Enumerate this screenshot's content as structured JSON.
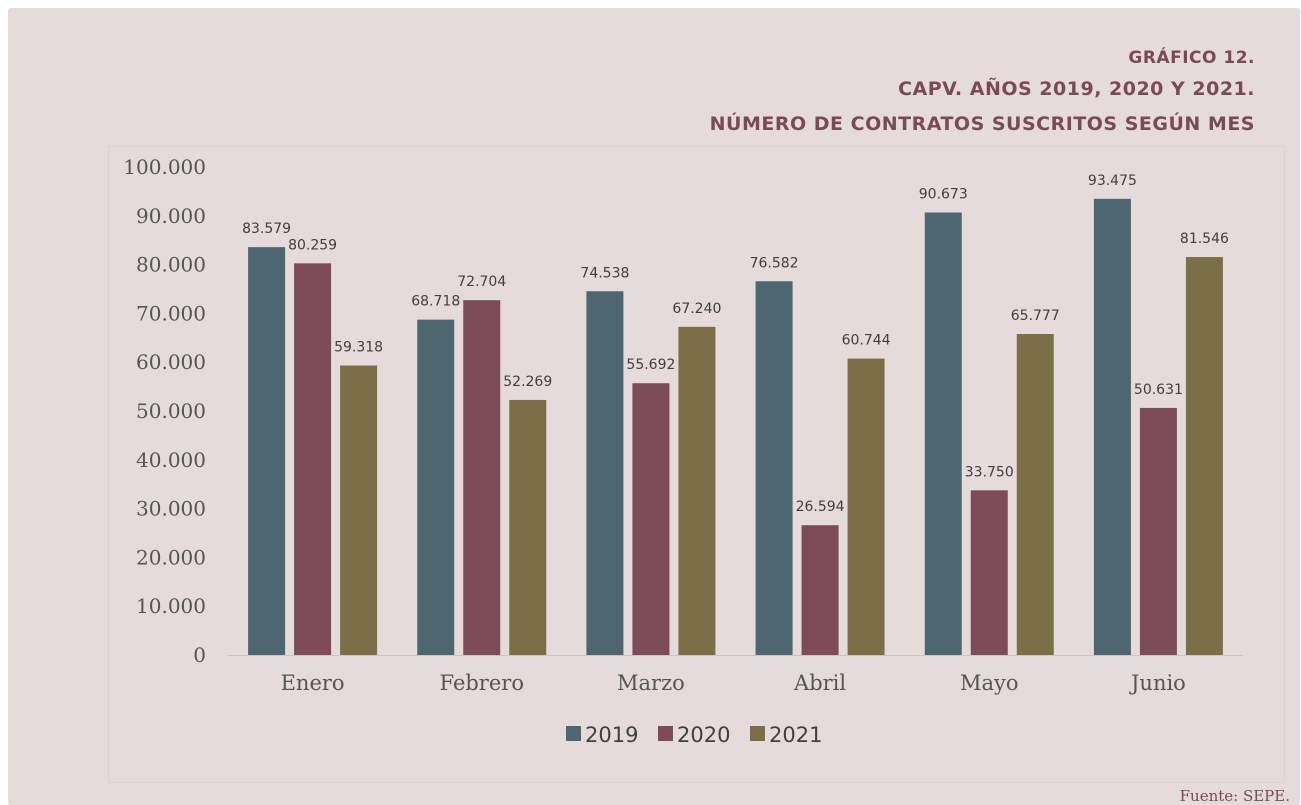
{
  "header": {
    "line1": "GRÁFICO 12.",
    "line2": "CAPV. AÑOS 2019,  2020 Y 2021.",
    "line3": "NÚMERO DE CONTRATOS SUSCRITOS SEGÚN MES"
  },
  "source": "Fuente: SEPE.",
  "colors": {
    "2019": "#4e6670",
    "2020": "#7e4b59",
    "2021": "#7c6f48",
    "title": "#7b4a57",
    "background": "#e5dbdb"
  },
  "chart_data": {
    "type": "bar",
    "title": "",
    "xlabel": "",
    "ylabel": "",
    "categories": [
      "Enero",
      "Febrero",
      "Marzo",
      "Abril",
      "Mayo",
      "Junio"
    ],
    "series": [
      {
        "name": "2019",
        "values": [
          83579,
          68718,
          74538,
          76582,
          90673,
          93475
        ],
        "labels": [
          "83.579",
          "68.718",
          "74.538",
          "76.582",
          "90.673",
          "93.475"
        ]
      },
      {
        "name": "2020",
        "values": [
          80259,
          72704,
          55692,
          26594,
          33750,
          50631
        ],
        "labels": [
          "80.259",
          "72.704",
          "55.692",
          "26.594",
          "33.750",
          "50.631"
        ]
      },
      {
        "name": "2021",
        "values": [
          59318,
          52269,
          67240,
          60744,
          65777,
          81546
        ],
        "labels": [
          "59.318",
          "52.269",
          "67.240",
          "60.744",
          "65.777",
          "81.546"
        ]
      }
    ],
    "ylim": [
      0,
      100000
    ],
    "yticks": [
      "0",
      "10.000",
      "20.000",
      "30.000",
      "40.000",
      "50.000",
      "60.000",
      "70.000",
      "80.000",
      "90.000",
      "100.000"
    ],
    "legend": [
      "2019",
      "2020",
      "2021"
    ],
    "legend_position": "bottom",
    "grid": false
  }
}
